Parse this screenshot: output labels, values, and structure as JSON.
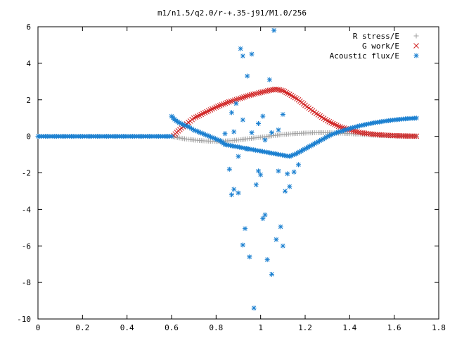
{
  "chart_data": {
    "type": "scatter",
    "title": "m1/n1.5/q2.0/r-+.35-j91/M1.0/256",
    "xlabel": "",
    "ylabel": "",
    "xlim": [
      0,
      1.8
    ],
    "ylim": [
      -10,
      6
    ],
    "grid": false,
    "legend_position": "top-right",
    "x_ticks": [
      0,
      0.2,
      0.4,
      0.6,
      0.8,
      1,
      1.2,
      1.4,
      1.6,
      1.8
    ],
    "x_tick_labels": [
      "0",
      "0.2",
      "0.4",
      "0.6",
      "0.8",
      "1",
      "1.2",
      "1.4",
      "1.6",
      "1.8"
    ],
    "y_ticks": [
      -10,
      -8,
      -6,
      -4,
      -2,
      0,
      2,
      4,
      6
    ],
    "y_tick_labels": [
      "-10",
      "-8",
      "-6",
      "-4",
      "-2",
      "0",
      "2",
      "4",
      "6"
    ],
    "series": [
      {
        "name": "R stress/E",
        "marker": "plus",
        "color": "#a0a0a0",
        "points": [
          [
            0.6,
            0.0
          ],
          [
            0.62,
            -0.05
          ],
          [
            0.65,
            -0.12
          ],
          [
            0.7,
            -0.2
          ],
          [
            0.75,
            -0.25
          ],
          [
            0.8,
            -0.28
          ],
          [
            0.85,
            -0.25
          ],
          [
            0.9,
            -0.2
          ],
          [
            0.95,
            -0.12
          ],
          [
            1.0,
            -0.05
          ],
          [
            1.05,
            0.03
          ],
          [
            1.1,
            0.1
          ],
          [
            1.15,
            0.15
          ],
          [
            1.2,
            0.18
          ],
          [
            1.25,
            0.2
          ],
          [
            1.3,
            0.2
          ],
          [
            1.35,
            0.18
          ],
          [
            1.4,
            0.15
          ],
          [
            1.45,
            0.11
          ],
          [
            1.5,
            0.07
          ],
          [
            1.55,
            0.04
          ],
          [
            1.6,
            0.02
          ],
          [
            1.65,
            0.01
          ],
          [
            1.7,
            0.0
          ]
        ]
      },
      {
        "name": "G work/E",
        "marker": "cross",
        "color": "#d02020",
        "points": [
          [
            0.61,
            0.05
          ],
          [
            0.63,
            0.3
          ],
          [
            0.66,
            0.6
          ],
          [
            0.7,
            1.0
          ],
          [
            0.75,
            1.3
          ],
          [
            0.8,
            1.6
          ],
          [
            0.85,
            1.85
          ],
          [
            0.9,
            2.05
          ],
          [
            0.95,
            2.25
          ],
          [
            1.0,
            2.4
          ],
          [
            1.04,
            2.52
          ],
          [
            1.07,
            2.58
          ],
          [
            1.1,
            2.5
          ],
          [
            1.13,
            2.3
          ],
          [
            1.17,
            2.0
          ],
          [
            1.2,
            1.7
          ],
          [
            1.25,
            1.25
          ],
          [
            1.3,
            0.85
          ],
          [
            1.35,
            0.55
          ],
          [
            1.4,
            0.35
          ],
          [
            1.45,
            0.2
          ],
          [
            1.5,
            0.12
          ],
          [
            1.55,
            0.07
          ],
          [
            1.6,
            0.04
          ],
          [
            1.65,
            0.02
          ],
          [
            1.7,
            0.01
          ]
        ]
      },
      {
        "name": "Acoustic flux/E",
        "marker": "star",
        "color": "#1a7fd0",
        "curve_points": [
          [
            0.0,
            0.0
          ],
          [
            0.05,
            0.0
          ],
          [
            0.1,
            0.0
          ],
          [
            0.15,
            0.0
          ],
          [
            0.2,
            0.0
          ],
          [
            0.25,
            0.0
          ],
          [
            0.3,
            0.0
          ],
          [
            0.35,
            0.0
          ],
          [
            0.4,
            0.0
          ],
          [
            0.45,
            0.0
          ],
          [
            0.5,
            0.0
          ],
          [
            0.55,
            0.0
          ],
          [
            0.6,
            0.0
          ],
          [
            0.6,
            1.1
          ],
          [
            0.62,
            0.85
          ],
          [
            0.65,
            0.65
          ],
          [
            0.68,
            0.5
          ],
          [
            0.7,
            0.35
          ],
          [
            0.73,
            0.2
          ],
          [
            0.76,
            0.05
          ],
          [
            0.79,
            -0.1
          ],
          [
            0.82,
            -0.25
          ],
          [
            0.84,
            -0.45
          ],
          [
            1.13,
            -1.1
          ],
          [
            1.16,
            -0.95
          ],
          [
            1.19,
            -0.75
          ],
          [
            1.22,
            -0.55
          ],
          [
            1.25,
            -0.35
          ],
          [
            1.28,
            -0.15
          ],
          [
            1.31,
            0.05
          ],
          [
            1.34,
            0.2
          ],
          [
            1.38,
            0.35
          ],
          [
            1.42,
            0.5
          ],
          [
            1.46,
            0.62
          ],
          [
            1.5,
            0.72
          ],
          [
            1.55,
            0.82
          ],
          [
            1.6,
            0.9
          ],
          [
            1.65,
            0.96
          ],
          [
            1.7,
            1.0
          ]
        ],
        "scatter_points": [
          [
            0.84,
            0.15
          ],
          [
            0.86,
            -1.8
          ],
          [
            0.87,
            -3.2
          ],
          [
            0.88,
            -2.9
          ],
          [
            0.89,
            1.8
          ],
          [
            0.9,
            -3.1
          ],
          [
            0.91,
            4.8
          ],
          [
            0.92,
            -5.95
          ],
          [
            0.92,
            4.4
          ],
          [
            0.93,
            -5.05
          ],
          [
            0.94,
            3.3
          ],
          [
            0.95,
            -6.6
          ],
          [
            0.96,
            4.5
          ],
          [
            0.97,
            -9.4
          ],
          [
            0.98,
            -2.65
          ],
          [
            0.99,
            -1.9
          ],
          [
            1.0,
            -2.1
          ],
          [
            1.01,
            -4.5
          ],
          [
            1.02,
            -4.3
          ],
          [
            1.03,
            -6.75
          ],
          [
            1.04,
            3.1
          ],
          [
            1.05,
            -7.55
          ],
          [
            1.06,
            5.8
          ],
          [
            1.07,
            -5.65
          ],
          [
            1.08,
            -1.9
          ],
          [
            1.09,
            -4.95
          ],
          [
            1.1,
            -6.0
          ],
          [
            1.11,
            -3.0
          ],
          [
            1.12,
            -2.05
          ],
          [
            1.13,
            -2.75
          ],
          [
            1.15,
            -1.95
          ],
          [
            1.17,
            -1.55
          ],
          [
            0.87,
            1.3
          ],
          [
            0.92,
            0.9
          ],
          [
            0.96,
            0.2
          ],
          [
            0.99,
            0.7
          ],
          [
            1.01,
            1.1
          ],
          [
            1.05,
            0.2
          ],
          [
            1.1,
            1.2
          ],
          [
            1.02,
            -0.2
          ],
          [
            0.94,
            -0.7
          ],
          [
            0.9,
            -1.1
          ],
          [
            0.88,
            0.25
          ],
          [
            1.08,
            0.35
          ]
        ]
      }
    ]
  }
}
